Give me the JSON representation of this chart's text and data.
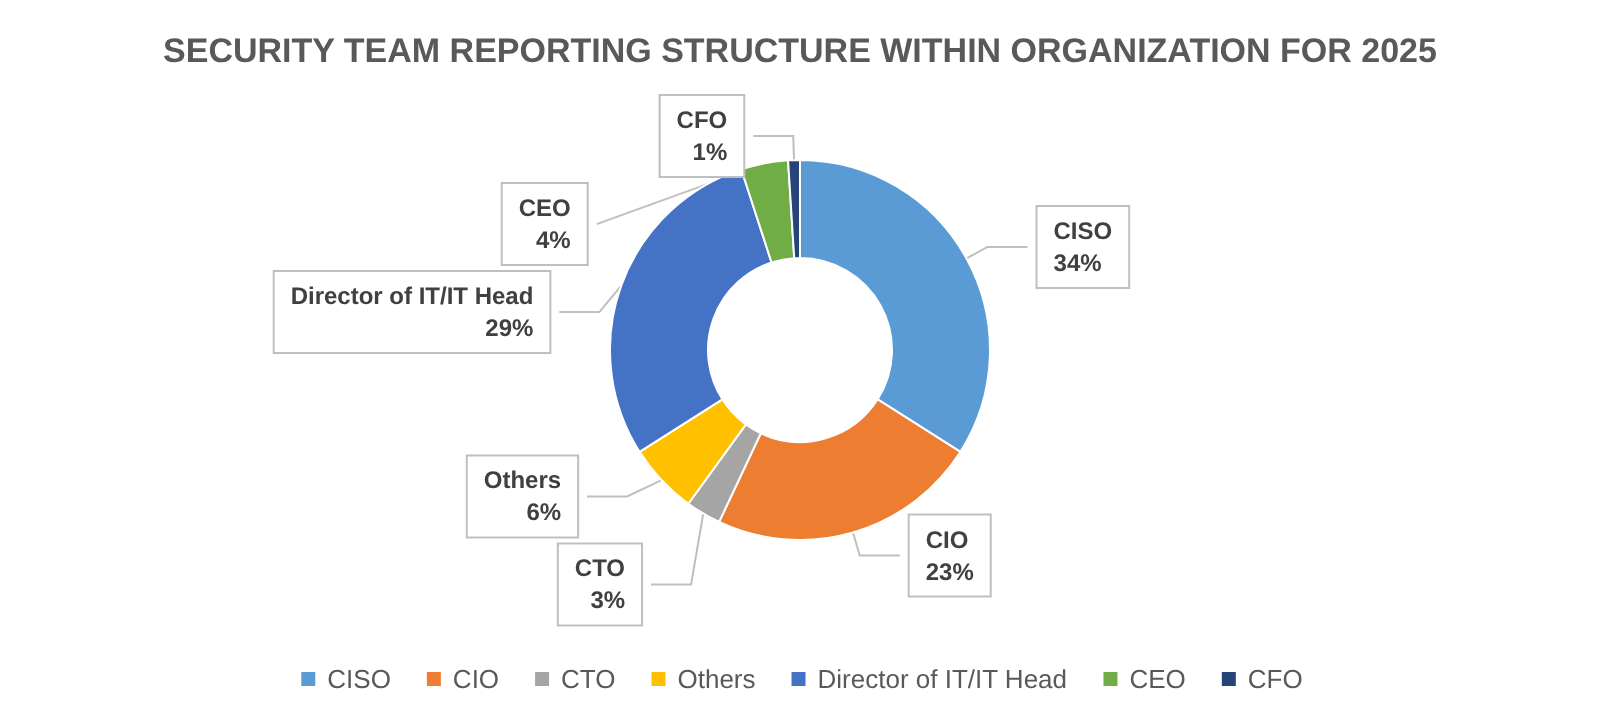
{
  "chart_data": {
    "type": "donut",
    "title": "SECURITY TEAM REPORTING STRUCTURE WITHIN ORGANIZATION FOR 2025",
    "categories": [
      "CISO",
      "CIO",
      "CTO",
      "Others",
      "Director of IT/IT Head",
      "CEO",
      "CFO"
    ],
    "values": [
      34,
      23,
      3,
      6,
      29,
      4,
      1
    ],
    "value_labels": [
      "34%",
      "23%",
      "3%",
      "6%",
      "29%",
      "4%",
      "1%"
    ],
    "colors": [
      "#5b9bd5",
      "#ed7d31",
      "#a5a5a5",
      "#ffc000",
      "#4472c4",
      "#70ad47",
      "#264478"
    ],
    "legend": "bottom"
  }
}
